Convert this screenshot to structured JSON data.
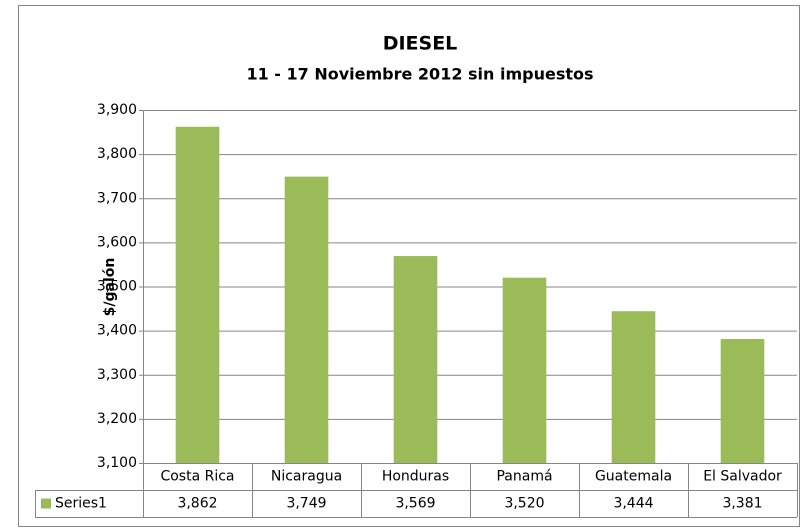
{
  "chart_data": {
    "type": "bar",
    "title": "DIESEL",
    "subtitle": "11 - 17 Noviembre 2012 sin impuestos",
    "ylabel": "$/galón",
    "categories": [
      "Costa Rica",
      "Nicaragua",
      "Honduras",
      "Panamá",
      "Guatemala",
      "El Salvador"
    ],
    "series": [
      {
        "name": "Series1",
        "color": "#9bbb59",
        "values": [
          3.862,
          3.749,
          3.569,
          3.52,
          3.444,
          3.381
        ],
        "value_labels": [
          "3,862",
          "3,749",
          "3,569",
          "3,520",
          "3,444",
          "3,381"
        ]
      }
    ],
    "ylim": [
      3.1,
      3.9
    ],
    "yticks": [
      {
        "value": 3.1,
        "label": "3,100"
      },
      {
        "value": 3.2,
        "label": "3,200"
      },
      {
        "value": 3.3,
        "label": "3,300"
      },
      {
        "value": 3.4,
        "label": "3,400"
      },
      {
        "value": 3.5,
        "label": "3,500"
      },
      {
        "value": 3.6,
        "label": "3,600"
      },
      {
        "value": 3.7,
        "label": "3,700"
      },
      {
        "value": 3.8,
        "label": "3,800"
      },
      {
        "value": 3.9,
        "label": "3,900"
      }
    ],
    "grid": true,
    "data_table": true
  }
}
